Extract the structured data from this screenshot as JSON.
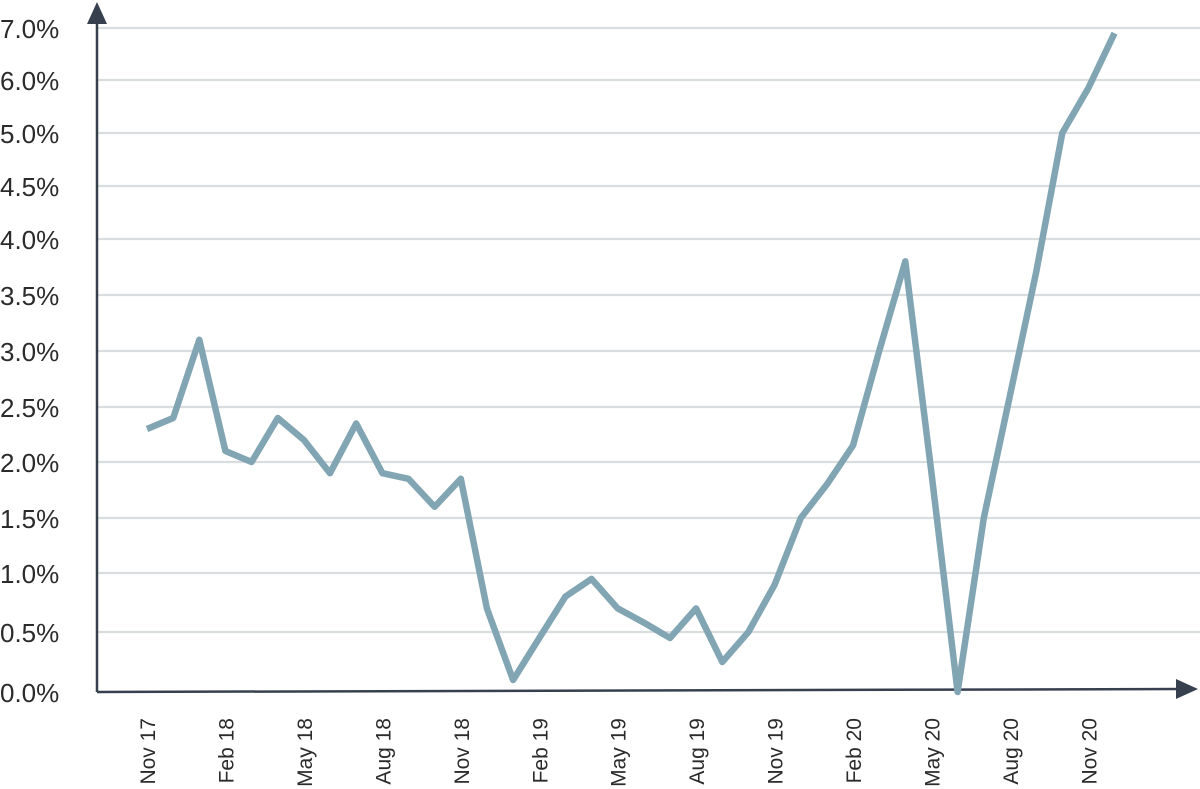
{
  "chart_data": {
    "type": "line",
    "title": "",
    "xlabel": "",
    "ylabel": "",
    "grid": true,
    "ylim": [
      0,
      7
    ],
    "y_tick_values": [
      0.0,
      0.5,
      1.0,
      1.5,
      2.0,
      2.5,
      3.0,
      3.5,
      4.0,
      4.5,
      5.0,
      6.0,
      7.0
    ],
    "y_tick_labels": [
      "0.0%",
      "0.5%",
      "1.0%",
      "1.5%",
      "2.0%",
      "2.5%",
      "3.0%",
      "3.5%",
      "4.0%",
      "4.5%",
      "5.0%",
      "6.0%",
      "7.0%"
    ],
    "x_tick_labels": [
      "Nov 17",
      "Feb 18",
      "May 18",
      "Aug 18",
      "Nov 18",
      "Feb 19",
      "May 19",
      "Aug 19",
      "Nov 19",
      "Feb 20",
      "May 20",
      "Aug 20",
      "Nov 20"
    ],
    "x": [
      "Nov 17",
      "Dec 17",
      "Jan 18",
      "Feb 18",
      "Mar 18",
      "Apr 18",
      "May 18",
      "Jun 18",
      "Jul 18",
      "Aug 18",
      "Sep 18",
      "Oct 18",
      "Nov 18",
      "Dec 18",
      "Jan 19",
      "Feb 19",
      "Mar 19",
      "Apr 19",
      "May 19",
      "Jun 19",
      "Jul 19",
      "Aug 19",
      "Sep 19",
      "Oct 19",
      "Nov 19",
      "Dec 19",
      "Jan 20",
      "Feb 20",
      "Mar 20",
      "Apr 20",
      "May 20",
      "Jun 20",
      "Jul 20",
      "Aug 20",
      "Sep 20",
      "Oct 20",
      "Nov 20",
      "Dec 20"
    ],
    "series": [
      {
        "values": [
          2.3,
          2.4,
          3.1,
          2.1,
          2.0,
          2.4,
          2.2,
          1.9,
          2.35,
          1.9,
          1.85,
          1.6,
          1.85,
          0.7,
          0.1,
          0.45,
          0.8,
          0.95,
          0.7,
          0.58,
          0.45,
          0.7,
          0.25,
          0.5,
          0.9,
          1.5,
          1.8,
          2.15,
          3.0,
          3.8,
          1.9,
          0.0,
          1.5,
          2.6,
          3.7,
          5.0,
          5.85,
          6.9
        ]
      }
    ],
    "colors": {
      "line": "#82a5b4",
      "axis": "#37404f",
      "grid": "#d9dde0",
      "text": "#2b2b2b"
    }
  }
}
